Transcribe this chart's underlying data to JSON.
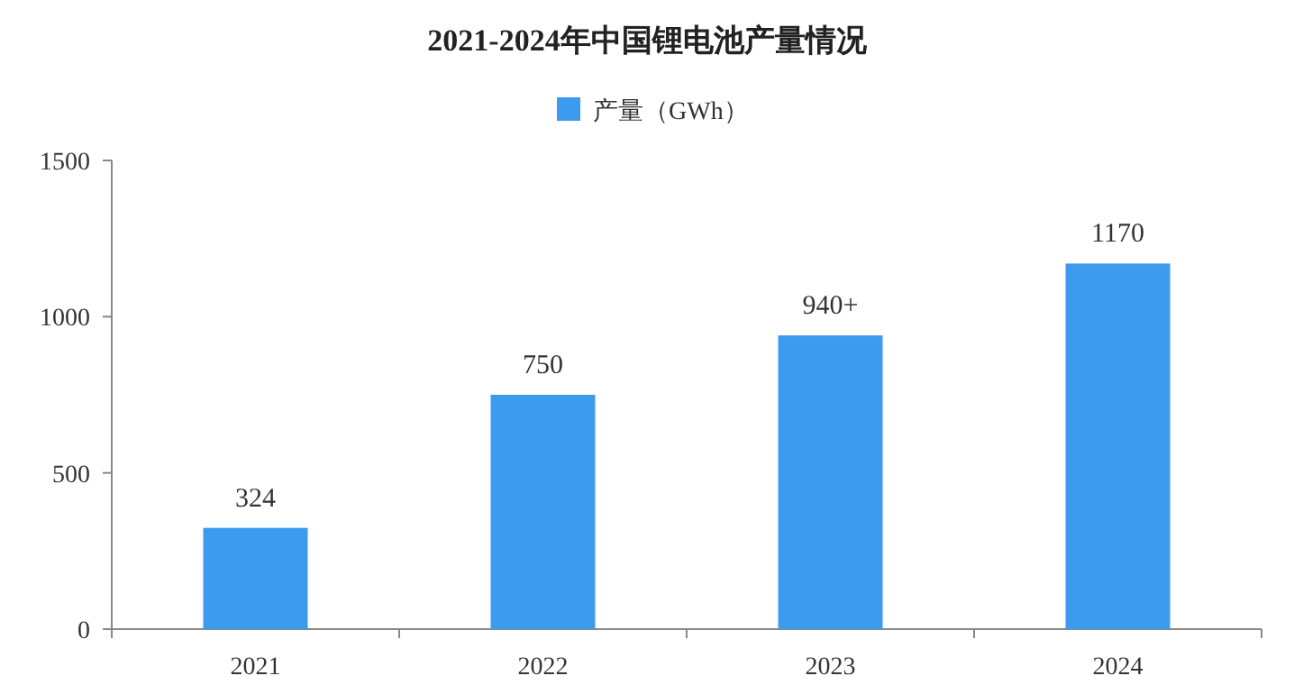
{
  "chart_data": {
    "type": "bar",
    "title": "2021-2024年中国锂电池产量情况",
    "categories": [
      "2021",
      "2022",
      "2023",
      "2024"
    ],
    "series": [
      {
        "name": "产量（GWh）",
        "color": "#3d9bef",
        "values": [
          324,
          750,
          940,
          1170
        ],
        "value_labels": [
          "324",
          "750",
          "940+",
          "1170"
        ]
      }
    ],
    "ylim": [
      0,
      1500
    ],
    "yticks": [
      0,
      500,
      1000,
      1500
    ],
    "legend": "top",
    "grid": false
  }
}
